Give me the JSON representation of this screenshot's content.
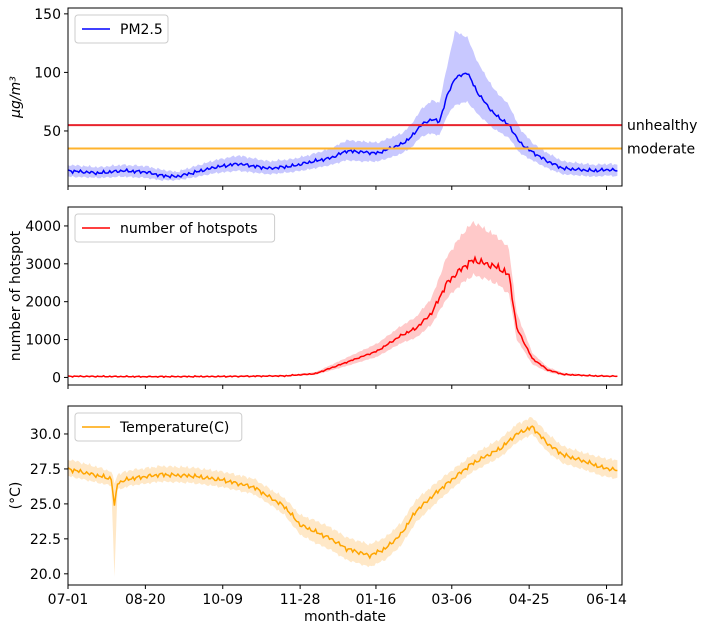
{
  "chart_data": [
    {
      "type": "line",
      "ylabel": "μg/m³",
      "xlabel": "",
      "ylim": [
        3,
        155
      ],
      "yticks": [
        "50",
        "100",
        "150"
      ],
      "ytick_values": [
        50,
        100,
        150
      ],
      "legend": {
        "position": "top-left",
        "entries": [
          "PM2.5"
        ]
      },
      "series": [
        {
          "name": "PM2.5",
          "color": "#0000ff",
          "band_color": "#9a9aff",
          "x": [
            0,
            20,
            35,
            50,
            60,
            70,
            80,
            95,
            110,
            130,
            145,
            155,
            170,
            180,
            190,
            200,
            210,
            216,
            222,
            228,
            235,
            240,
            245,
            250,
            258,
            265,
            275,
            285,
            292,
            300,
            310,
            320,
            340,
            350,
            355
          ],
          "values": [
            16,
            14,
            16,
            15,
            12,
            11,
            14,
            19,
            22,
            18,
            20,
            23,
            27,
            33,
            32,
            31,
            36,
            39,
            45,
            55,
            60,
            58,
            80,
            95,
            100,
            82,
            65,
            55,
            40,
            32,
            24,
            18,
            16,
            17,
            16
          ],
          "lower": [
            11,
            10,
            11,
            10,
            8,
            8,
            10,
            14,
            16,
            13,
            15,
            17,
            21,
            25,
            24,
            24,
            28,
            31,
            36,
            45,
            48,
            46,
            63,
            72,
            75,
            64,
            52,
            44,
            31,
            25,
            18,
            13,
            11,
            12,
            11
          ],
          "upper": [
            21,
            19,
            21,
            20,
            17,
            15,
            19,
            25,
            29,
            24,
            26,
            29,
            35,
            42,
            41,
            40,
            45,
            48,
            56,
            68,
            76,
            74,
            105,
            135,
            130,
            108,
            86,
            72,
            52,
            40,
            31,
            24,
            21,
            22,
            21
          ]
        }
      ],
      "hlines": [
        {
          "label": "unhealthy",
          "y": 55,
          "color": "#e8242e"
        },
        {
          "label": "moderate",
          "y": 35,
          "color": "#ffb32d"
        }
      ]
    },
    {
      "type": "line",
      "ylabel": "number of hotspot",
      "xlabel": "",
      "ylim": [
        -200,
        4500
      ],
      "yticks": [
        "0",
        "1000",
        "2000",
        "3000",
        "4000"
      ],
      "ytick_values": [
        0,
        1000,
        2000,
        3000,
        4000
      ],
      "legend": {
        "position": "top-left",
        "entries": [
          "number of hotspots"
        ]
      },
      "series": [
        {
          "name": "number of hotspots",
          "color": "#ff0000",
          "band_color": "#ff9c9c",
          "x": [
            0,
            50,
            100,
            140,
            160,
            180,
            200,
            215,
            225,
            235,
            245,
            255,
            262,
            270,
            278,
            285,
            290,
            300,
            310,
            320,
            340,
            355
          ],
          "values": [
            30,
            20,
            25,
            40,
            100,
            400,
            700,
            1100,
            1300,
            1700,
            2500,
            2900,
            3100,
            3000,
            2900,
            2700,
            1300,
            500,
            200,
            80,
            40,
            30
          ],
          "lower": [
            20,
            10,
            15,
            25,
            70,
            300,
            550,
            900,
            1050,
            1400,
            2100,
            2500,
            2700,
            2600,
            2450,
            2200,
            1000,
            350,
            140,
            50,
            25,
            20
          ],
          "upper": [
            45,
            30,
            40,
            60,
            140,
            520,
            900,
            1350,
            1600,
            2100,
            3200,
            3800,
            4100,
            3900,
            3700,
            3400,
            1700,
            650,
            270,
            120,
            60,
            45
          ]
        }
      ]
    },
    {
      "type": "line",
      "ylabel": "(°C)",
      "xlabel": "month-date",
      "ylim": [
        19.2,
        32
      ],
      "yticks": [
        "20.0",
        "22.5",
        "25.0",
        "27.5",
        "30.0"
      ],
      "ytick_values": [
        20,
        22.5,
        25,
        27.5,
        30
      ],
      "xticks": [
        "07-01",
        "08-20",
        "10-09",
        "11-28",
        "01-16",
        "03-06",
        "04-25",
        "06-14"
      ],
      "xtick_values": [
        0,
        50,
        100,
        150,
        199,
        248,
        298,
        348
      ],
      "xlim": [
        0,
        358
      ],
      "legend": {
        "position": "top-left",
        "entries": [
          "Temperature(C)"
        ]
      },
      "series": [
        {
          "name": "Temperature(C)",
          "color": "#ffa500",
          "band_color": "#ffd699",
          "x": [
            0,
            20,
            28,
            30,
            32,
            40,
            60,
            80,
            100,
            120,
            130,
            140,
            150,
            160,
            170,
            180,
            195,
            205,
            215,
            225,
            240,
            260,
            280,
            290,
            300,
            310,
            320,
            335,
            345,
            355
          ],
          "values": [
            27.5,
            27.0,
            26.8,
            24.8,
            26.5,
            26.8,
            27.1,
            27.0,
            26.7,
            26.2,
            25.5,
            24.8,
            23.5,
            23.0,
            22.5,
            21.8,
            21.3,
            21.8,
            22.8,
            24.5,
            26.0,
            27.8,
            29.0,
            30.0,
            30.5,
            29.3,
            28.5,
            28.0,
            27.6,
            27.4
          ],
          "lower": [
            27.0,
            26.5,
            26.3,
            19.8,
            26.0,
            26.3,
            26.6,
            26.5,
            26.2,
            25.7,
            25.0,
            24.2,
            22.8,
            22.2,
            21.7,
            21.0,
            20.5,
            21.0,
            22.0,
            23.7,
            25.3,
            27.2,
            28.4,
            29.4,
            30.0,
            28.7,
            27.9,
            27.4,
            27.0,
            26.8
          ],
          "upper": [
            28.2,
            27.6,
            27.3,
            26.5,
            27.1,
            27.4,
            27.7,
            27.6,
            27.3,
            26.8,
            26.1,
            25.4,
            24.2,
            23.8,
            23.3,
            22.6,
            22.1,
            22.6,
            23.6,
            25.3,
            26.7,
            28.4,
            29.7,
            30.7,
            31.2,
            30.0,
            29.1,
            28.6,
            28.3,
            28.1
          ]
        }
      ]
    }
  ]
}
